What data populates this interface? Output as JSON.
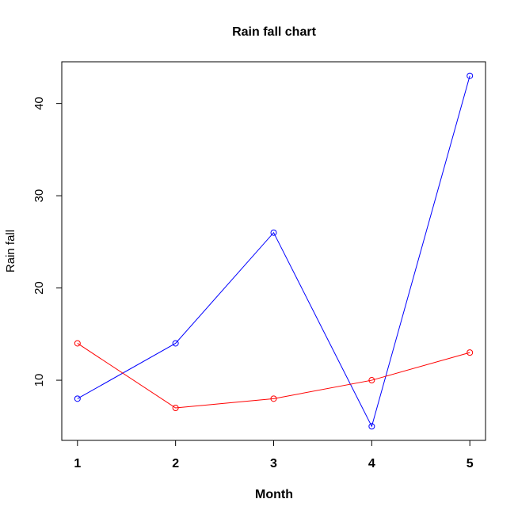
{
  "chart_data": {
    "type": "line",
    "title": "Rain fall chart",
    "xlabel": "Month",
    "ylabel": "Rain fall",
    "x": [
      1,
      2,
      3,
      4,
      5
    ],
    "series": [
      {
        "color": "blue",
        "values": [
          8,
          14,
          26,
          5,
          43
        ]
      },
      {
        "color": "red",
        "values": [
          14,
          7,
          8,
          10,
          13
        ]
      }
    ],
    "xlim": [
      0.84,
      5.16
    ],
    "xticks": [
      1,
      2,
      3,
      4,
      5
    ],
    "ylim": [
      3.48,
      44.52
    ],
    "yticks": [
      10,
      20,
      30,
      40
    ]
  }
}
